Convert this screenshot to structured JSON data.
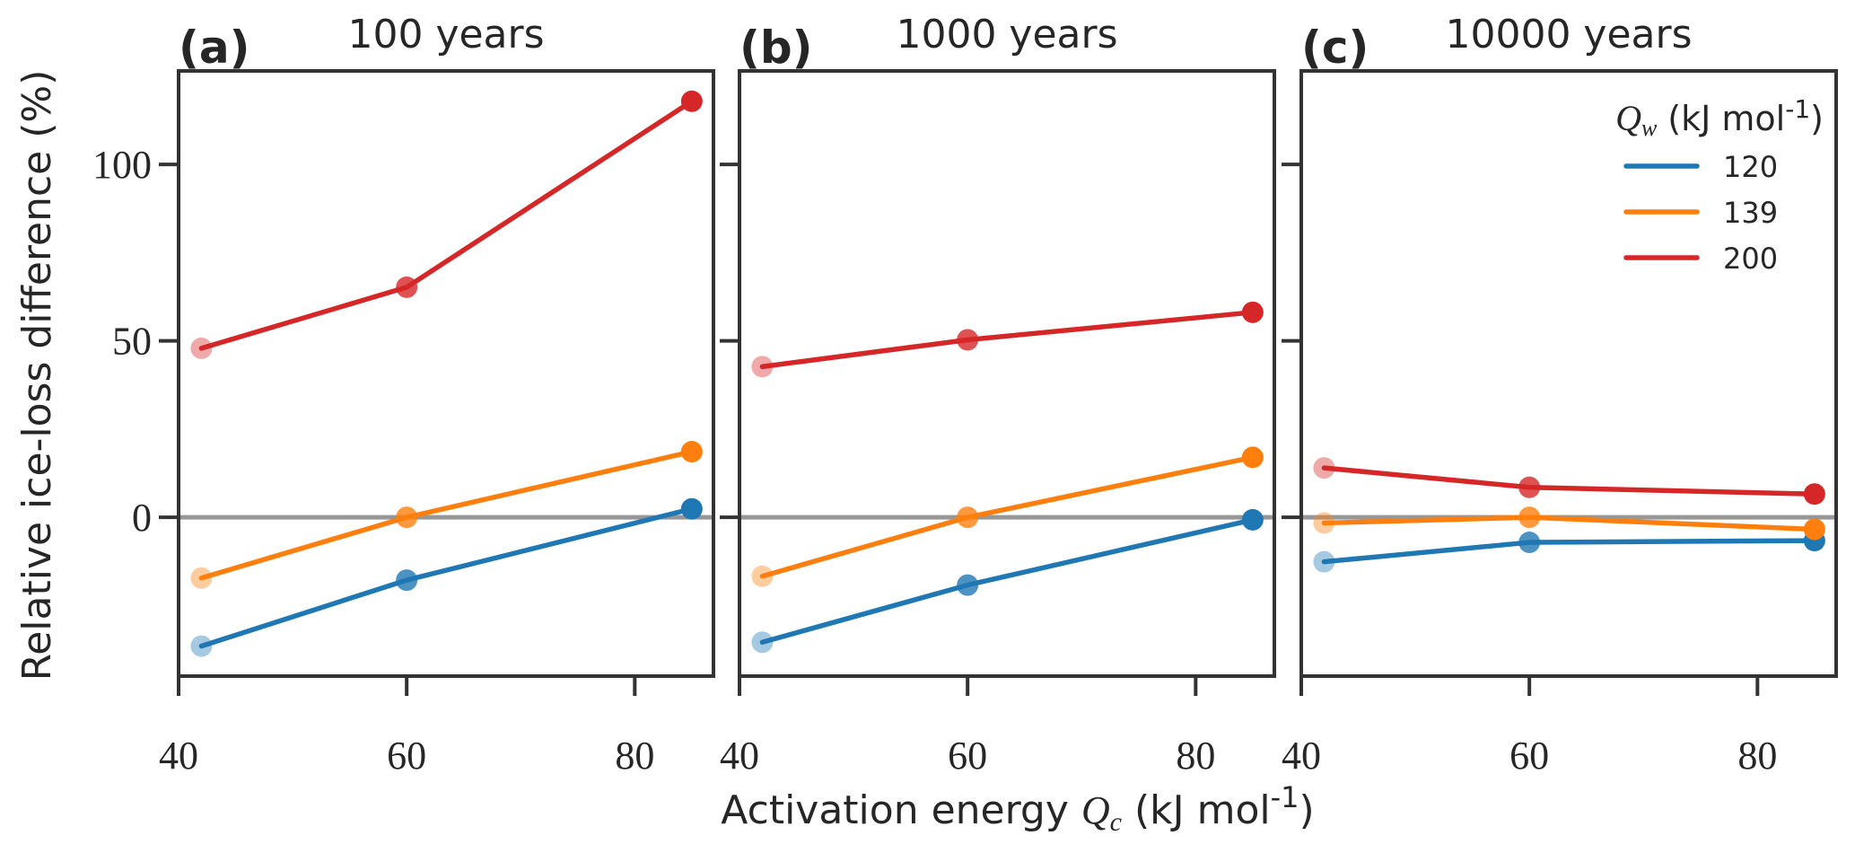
{
  "chart_data": {
    "type": "line",
    "ylabel": "Relative ice-loss difference (%)",
    "xlabel_parts": {
      "text": "Activation energy ",
      "math": "Q",
      "math_sub": "c",
      "unit": "(kJ mol",
      "sup": "-1",
      "close": ")"
    },
    "xlim": [
      40,
      86.9
    ],
    "ylim": [
      -45,
      126.5
    ],
    "xticks": [
      40,
      60,
      80
    ],
    "yticks": [
      0,
      50,
      100
    ],
    "zero_line": true,
    "grid": false,
    "legend": {
      "placement": "top-right",
      "panel": 2,
      "title_math": "Q",
      "title_math_sub": "w",
      "title_unit": "(kJ mol",
      "title_sup": "-1",
      "title_close": ")",
      "entries": [
        {
          "label": "120",
          "color": "#1f77b4"
        },
        {
          "label": "139",
          "color": "#ff7f0e"
        },
        {
          "label": "200",
          "color": "#d62728"
        }
      ]
    },
    "marker_alphas": [
      0.4,
      0.8,
      1.0
    ],
    "x": [
      42,
      60,
      85
    ],
    "panels": [
      {
        "label": "(a)",
        "title": "100 years",
        "series": [
          {
            "name": "120",
            "color": "#1f77b4",
            "values": [
              -36.5,
              -17.8,
              2.4
            ]
          },
          {
            "name": "139",
            "color": "#ff7f0e",
            "values": [
              -17.2,
              0.0,
              18.6
            ]
          },
          {
            "name": "200",
            "color": "#d62728",
            "values": [
              47.9,
              65.2,
              117.9
            ]
          }
        ]
      },
      {
        "label": "(b)",
        "title": "1000 years",
        "series": [
          {
            "name": "120",
            "color": "#1f77b4",
            "values": [
              -35.4,
              -19.2,
              -0.7
            ]
          },
          {
            "name": "139",
            "color": "#ff7f0e",
            "values": [
              -16.7,
              0.0,
              17.0
            ]
          },
          {
            "name": "200",
            "color": "#d62728",
            "values": [
              42.7,
              50.3,
              58.1
            ]
          }
        ]
      },
      {
        "label": "(c)",
        "title": "10000 years",
        "series": [
          {
            "name": "120",
            "color": "#1f77b4",
            "values": [
              -12.6,
              -7.1,
              -6.6
            ]
          },
          {
            "name": "139",
            "color": "#ff7f0e",
            "values": [
              -1.6,
              0.0,
              -3.4
            ]
          },
          {
            "name": "200",
            "color": "#d62728",
            "values": [
              14.0,
              8.5,
              6.6
            ]
          }
        ]
      }
    ]
  }
}
